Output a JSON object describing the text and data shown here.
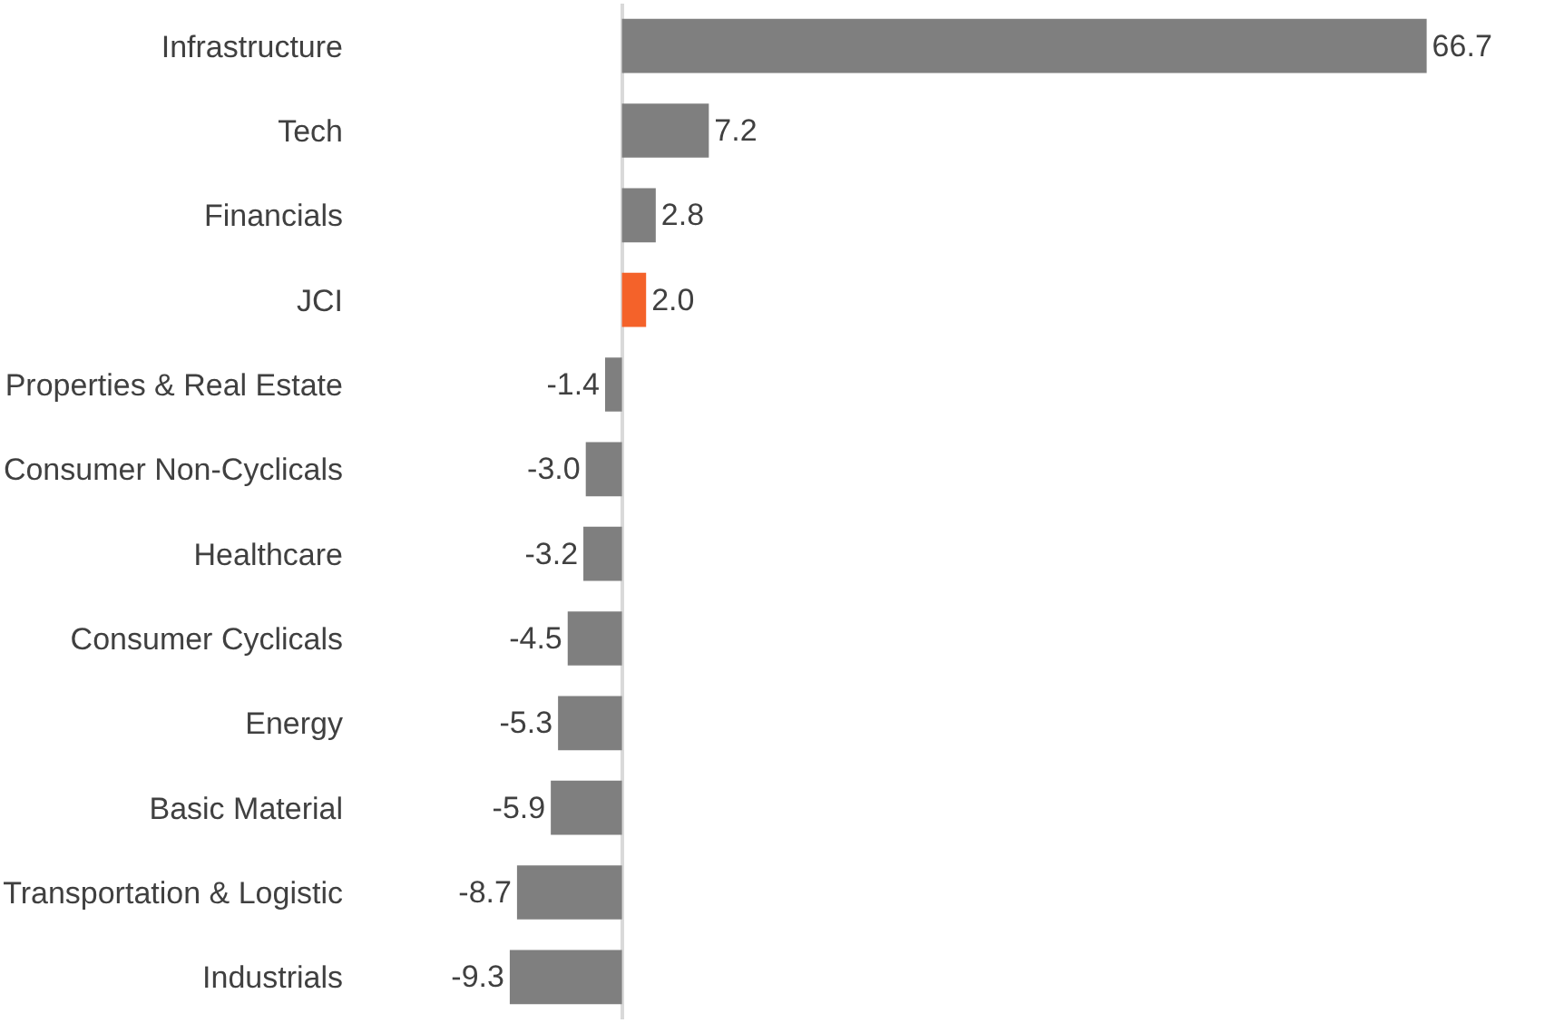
{
  "chart_data": {
    "type": "bar",
    "orientation": "horizontal",
    "categories": [
      "Infrastructure",
      "Tech",
      "Financials",
      "JCI",
      "Properties & Real Estate",
      "Consumer Non-Cyclicals",
      "Healthcare",
      "Consumer Cyclicals",
      "Energy",
      "Basic Material",
      "Transportation & Logistic",
      "Industrials"
    ],
    "values": [
      66.7,
      7.2,
      2.8,
      2.0,
      -1.4,
      -3.0,
      -3.2,
      -4.5,
      -5.3,
      -5.9,
      -8.7,
      -9.3
    ],
    "value_labels": [
      "66.7",
      "7.2",
      "2.8",
      "2.0",
      "-1.4",
      "-3.0",
      "-3.2",
      "-4.5",
      "-5.3",
      "-5.9",
      "-8.7",
      "-9.3"
    ],
    "colors": [
      "#7f7f7f",
      "#7f7f7f",
      "#7f7f7f",
      "#f4622a",
      "#7f7f7f",
      "#7f7f7f",
      "#7f7f7f",
      "#7f7f7f",
      "#7f7f7f",
      "#7f7f7f",
      "#7f7f7f",
      "#7f7f7f"
    ],
    "tick_labels": "y",
    "grid": false,
    "legend": false
  }
}
